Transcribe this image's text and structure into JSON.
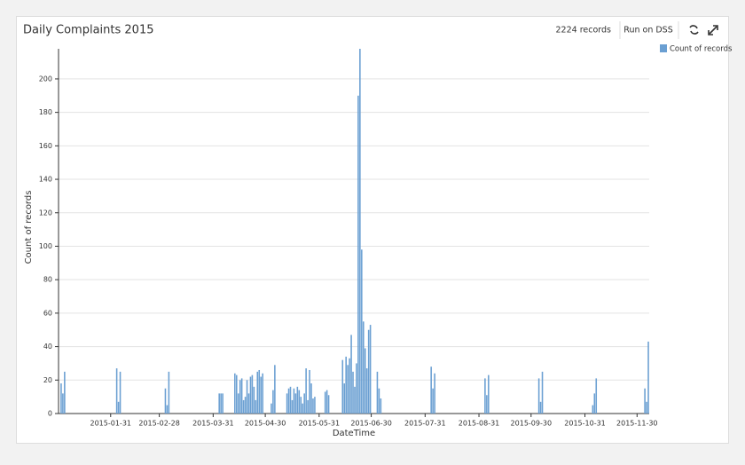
{
  "toolbar": {
    "records": "2224 records",
    "button": "Run on DSS"
  },
  "chart_data": {
    "type": "bar",
    "title": "Daily Complaints 2015",
    "x_label": "DateTime",
    "y_label": "Count of records",
    "x": [
      "2015-01-02",
      "2015-01-03",
      "2015-01-04",
      "2015-02-03",
      "2015-02-04",
      "2015-02-05",
      "2015-03-03",
      "2015-03-04",
      "2015-03-05",
      "2015-04-03",
      "2015-04-04",
      "2015-04-05",
      "2015-04-12",
      "2015-04-13",
      "2015-04-14",
      "2015-04-15",
      "2015-04-16",
      "2015-04-17",
      "2015-04-18",
      "2015-04-19",
      "2015-04-20",
      "2015-04-21",
      "2015-04-22",
      "2015-04-23",
      "2015-04-24",
      "2015-04-25",
      "2015-04-26",
      "2015-04-27",
      "2015-04-28",
      "2015-05-03",
      "2015-05-04",
      "2015-05-05",
      "2015-05-12",
      "2015-05-13",
      "2015-05-14",
      "2015-05-15",
      "2015-05-16",
      "2015-05-17",
      "2015-05-18",
      "2015-05-19",
      "2015-05-20",
      "2015-05-21",
      "2015-05-22",
      "2015-05-23",
      "2015-05-24",
      "2015-05-25",
      "2015-05-26",
      "2015-05-27",
      "2015-05-28",
      "2015-06-03",
      "2015-06-04",
      "2015-06-05",
      "2015-06-13",
      "2015-06-14",
      "2015-06-15",
      "2015-06-16",
      "2015-06-17",
      "2015-06-18",
      "2015-06-19",
      "2015-06-20",
      "2015-06-21",
      "2015-06-22",
      "2015-06-23",
      "2015-06-24",
      "2015-06-25",
      "2015-06-26",
      "2015-06-27",
      "2015-06-28",
      "2015-06-29",
      "2015-07-03",
      "2015-07-04",
      "2015-07-05",
      "2015-08-03",
      "2015-08-04",
      "2015-08-05",
      "2015-09-03",
      "2015-09-04",
      "2015-09-05",
      "2015-10-04",
      "2015-10-05",
      "2015-10-06",
      "2015-11-04",
      "2015-11-05",
      "2015-11-06",
      "2015-12-04",
      "2015-12-05",
      "2015-12-06"
    ],
    "series": [
      {
        "name": "Count of records",
        "color": "#6a9fd2",
        "values": [
          18,
          12,
          25,
          27,
          7,
          25,
          15,
          5,
          25,
          12,
          12,
          12,
          24,
          23,
          12,
          20,
          21,
          8,
          10,
          20,
          12,
          22,
          23,
          16,
          8,
          25,
          26,
          22,
          24,
          6,
          14,
          29,
          12,
          15,
          16,
          8,
          15,
          12,
          16,
          14,
          10,
          6,
          12,
          27,
          8,
          26,
          18,
          9,
          10,
          13,
          14,
          11,
          32,
          18,
          34,
          29,
          33,
          47,
          25,
          16,
          30,
          190,
          218,
          98,
          55,
          39,
          27,
          50,
          53,
          25,
          15,
          9,
          28,
          15,
          24,
          21,
          11,
          23,
          21,
          7,
          25,
          5,
          12,
          21,
          15,
          7,
          43
        ]
      }
    ],
    "xlim": [
      "2015-01-01",
      "2015-12-07"
    ],
    "xticks": [
      "2015-01-31",
      "2015-02-28",
      "2015-03-31",
      "2015-04-30",
      "2015-05-31",
      "2015-06-30",
      "2015-07-31",
      "2015-08-31",
      "2015-09-30",
      "2015-10-31",
      "2015-11-30"
    ],
    "ylim": [
      0,
      218
    ],
    "yticks": [
      0,
      20,
      40,
      60,
      80,
      100,
      120,
      140,
      160,
      180,
      200
    ],
    "grid": true,
    "legend": "top-right"
  }
}
